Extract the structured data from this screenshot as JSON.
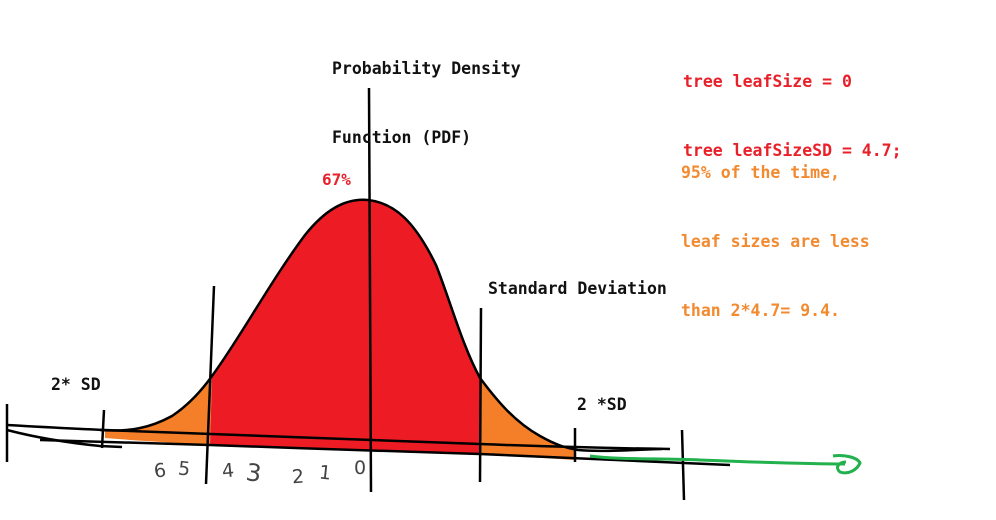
{
  "title_lines": [
    "Probability Density",
    "Function (PDF)"
  ],
  "code_lines": [
    "tree leafSize = 0",
    "tree leafSizeSD = 4.7;"
  ],
  "note_lines": [
    "95% of the time,",
    "leaf sizes are less",
    "than 2*4.7= 9.4."
  ],
  "peak_percent": "67%",
  "labels": {
    "standard_deviation": "Standard Deviation",
    "left_two_sd": "2* SD",
    "right_two_sd": "2 *SD"
  },
  "axis_ticks": [
    "6",
    "5",
    "4",
    "3",
    "2",
    "1",
    "0"
  ],
  "colors": {
    "center_fill": "#ed1c24",
    "tail_fill": "#f47f28",
    "code_text": "#e8202a",
    "note_text": "#f28a30",
    "arrow_line": "#22b14c",
    "outline": "#000000"
  }
}
